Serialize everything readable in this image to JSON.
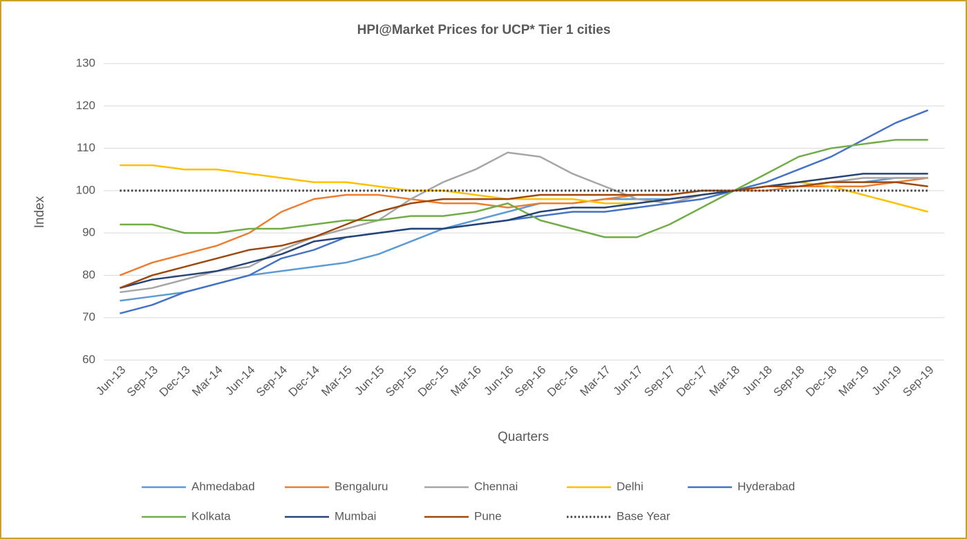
{
  "chart_data": {
    "type": "line",
    "title": "HPI@Market Prices for UCP* Tier 1 cities",
    "x_label": "Quarters",
    "y_label": "Index",
    "categories": [
      "Jun-13",
      "Sep-13",
      "Dec-13",
      "Mar-14",
      "Jun-14",
      "Sep-14",
      "Dec-14",
      "Mar-15",
      "Jun-15",
      "Sep-15",
      "Dec-15",
      "Mar-16",
      "Jun-16",
      "Sep-16",
      "Dec-16",
      "Mar-17",
      "Jun-17",
      "Sep-17",
      "Dec-17",
      "Mar-18",
      "Jun-18",
      "Sep-18",
      "Dec-18",
      "Mar-19",
      "Jun-19",
      "Sep-19"
    ],
    "ylim": [
      60,
      130
    ],
    "yticks": [
      60,
      70,
      80,
      90,
      100,
      110,
      120,
      130
    ],
    "grid": true,
    "legend": "bottom",
    "series": [
      {
        "name": "Ahmedabad",
        "color": "#5b9bd5",
        "values": [
          74,
          75,
          76,
          78,
          80,
          81,
          82,
          83,
          85,
          88,
          91,
          93,
          95,
          97,
          97,
          98,
          98,
          98,
          99,
          100,
          101,
          101,
          102,
          102,
          103,
          103
        ]
      },
      {
        "name": "Bengaluru",
        "color": "#ed7d31",
        "values": [
          80,
          83,
          85,
          87,
          90,
          95,
          98,
          99,
          99,
          98,
          97,
          97,
          96,
          97,
          97,
          98,
          99,
          99,
          100,
          100,
          100,
          101,
          101,
          101,
          102,
          103
        ]
      },
      {
        "name": "Chennai",
        "color": "#a5a5a5",
        "values": [
          76,
          77,
          79,
          81,
          82,
          86,
          89,
          91,
          93,
          98,
          102,
          105,
          109,
          108,
          104,
          101,
          98,
          97,
          99,
          100,
          101,
          101,
          102,
          103,
          103,
          103
        ]
      },
      {
        "name": "Delhi",
        "color": "#ffc000",
        "values": [
          106,
          106,
          105,
          105,
          104,
          103,
          102,
          102,
          101,
          100,
          100,
          99,
          98,
          98,
          98,
          97,
          97,
          98,
          99,
          100,
          101,
          102,
          101,
          99,
          97,
          95
        ]
      },
      {
        "name": "Hyderabad",
        "color": "#4472c4",
        "values": [
          71,
          73,
          76,
          78,
          80,
          84,
          86,
          89,
          90,
          91,
          91,
          92,
          93,
          94,
          95,
          95,
          96,
          97,
          98,
          100,
          102,
          105,
          108,
          112,
          116,
          119
        ]
      },
      {
        "name": "Kolkata",
        "color": "#70ad47",
        "values": [
          92,
          92,
          90,
          90,
          91,
          91,
          92,
          93,
          93,
          94,
          94,
          95,
          97,
          93,
          91,
          89,
          89,
          92,
          96,
          100,
          104,
          108,
          110,
          111,
          112,
          112
        ]
      },
      {
        "name": "Mumbai",
        "color": "#264478",
        "values": [
          77,
          79,
          80,
          81,
          83,
          85,
          88,
          89,
          90,
          91,
          91,
          92,
          93,
          95,
          96,
          96,
          97,
          98,
          99,
          100,
          101,
          102,
          103,
          104,
          104,
          104
        ]
      },
      {
        "name": "Pune",
        "color": "#9e480e",
        "values": [
          77,
          80,
          82,
          84,
          86,
          87,
          89,
          92,
          95,
          97,
          98,
          98,
          98,
          99,
          99,
          99,
          99,
          99,
          100,
          100,
          101,
          101,
          102,
          102,
          102,
          101
        ]
      },
      {
        "name": "Base Year",
        "color": "#404040",
        "dash": "dotted",
        "values": [
          100,
          100,
          100,
          100,
          100,
          100,
          100,
          100,
          100,
          100,
          100,
          100,
          100,
          100,
          100,
          100,
          100,
          100,
          100,
          100,
          100,
          100,
          100,
          100,
          100,
          100
        ]
      }
    ]
  }
}
